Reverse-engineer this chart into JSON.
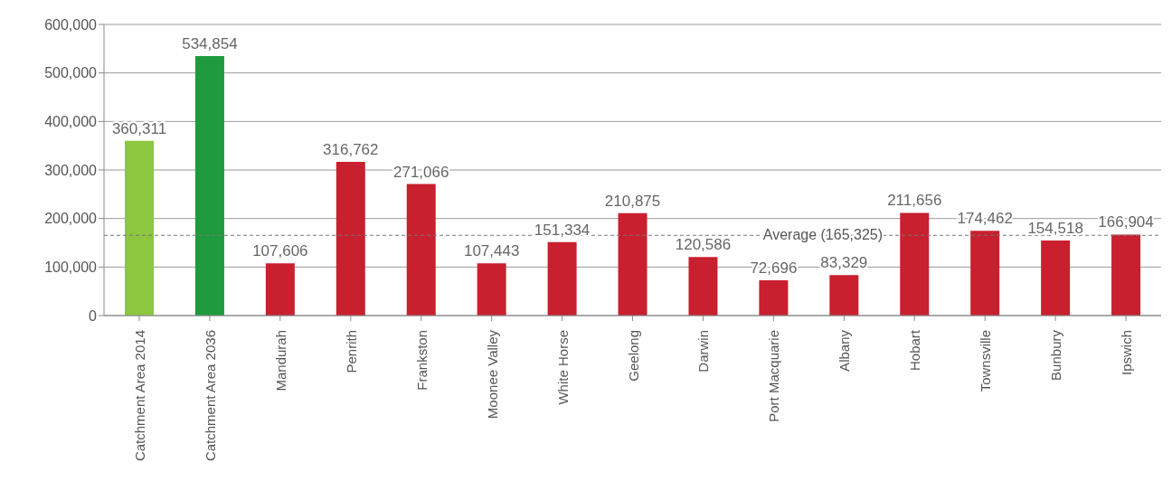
{
  "chart_data": {
    "type": "bar",
    "categories": [
      "Catchment Area 2014",
      "Catchment Area 2036",
      "Mandurah",
      "Penrith",
      "Frankston",
      "Moonee Valley",
      "White Horse",
      "Geelong",
      "Darwin",
      "Port Macquarie",
      "Albany",
      "Hobart",
      "Townsville",
      "Bunbury",
      "Ipswich"
    ],
    "values": [
      360311,
      534854,
      107606,
      316762,
      271066,
      107443,
      151334,
      210875,
      120586,
      72696,
      83329,
      211656,
      174462,
      154518,
      166904
    ],
    "colors": [
      "#8dc63f",
      "#1f9a3f",
      "#c8202f",
      "#c8202f",
      "#c8202f",
      "#c8202f",
      "#c8202f",
      "#c8202f",
      "#c8202f",
      "#c8202f",
      "#c8202f",
      "#c8202f",
      "#c8202f",
      "#c8202f",
      "#c8202f"
    ],
    "ylim": [
      0,
      600000
    ],
    "yticks": [
      0,
      {
        "value": 100000,
        "label": "100,000"
      },
      {
        "value": 200000,
        "label": "200,000"
      },
      {
        "value": 300000,
        "label": "300,000"
      },
      {
        "value": 400000,
        "label": "400,000"
      },
      {
        "value": 500000,
        "label": "500,000"
      },
      {
        "value": 600000,
        "label": "600,000"
      }
    ],
    "grid": "y",
    "value_labels": [
      "360,311",
      "534,854",
      "107,606",
      "316,762",
      "271,066",
      "107,443",
      "151,334",
      "210,875",
      "120,586",
      "72,696",
      "83,329",
      "211,656",
      "174,462",
      "154,518",
      "166,904"
    ],
    "ref_lines": [
      {
        "axis": "y",
        "value": 165325,
        "label": "Average (165,325)",
        "color": "#777777",
        "line_style": "dashed"
      }
    ]
  }
}
